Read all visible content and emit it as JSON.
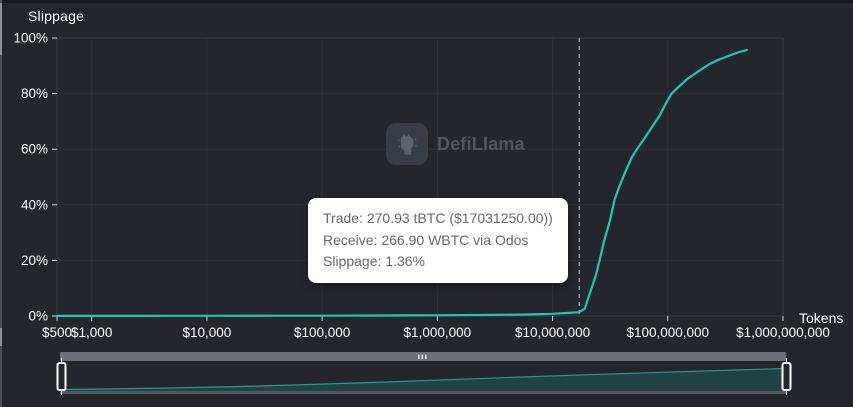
{
  "header": {
    "title": "Slippage"
  },
  "axis_labels": {
    "x_unit": "Tokens"
  },
  "watermark": {
    "label": "DefiLlama"
  },
  "tooltip": {
    "trade": "Trade: 270.93 tBTC ($17031250.00))",
    "receive": "Receive: 266.90 WBTC via Odos",
    "slippage": "Slippage: 1.36%"
  },
  "colors": {
    "accent": "#1dc8b6",
    "background": "#24262b",
    "grid": "#2f3237",
    "border": "#3a3d44",
    "tick": "#d9dadc",
    "tick_text": "#ffffff",
    "crosshair": "#d4d5d7",
    "scrollbar": "#6e7177",
    "scrollbar_grip": "#d9dadb",
    "brush_fill_opacity": "0.18",
    "brush_line": "#27a795",
    "brush_bottom": "#55585e",
    "handle_border": "#ffffff",
    "handle_fill": "#24262b",
    "tooltip_bg": "#ffffff",
    "tooltip_text": "#66696d"
  },
  "chart_data": {
    "type": "line",
    "title": "Slippage",
    "xlabel": "Tokens",
    "ylabel": "Slippage",
    "x_scale": "log",
    "x_range": [
      500,
      1000000000
    ],
    "ylim": [
      0,
      100
    ],
    "grid": true,
    "x_ticks": [
      "$500",
      "$1,000",
      "$10,000",
      "$100,000",
      "$1,000,000",
      "$10,000,000",
      "$100,000,000",
      "$1,000,000,000"
    ],
    "x_tick_values": [
      500,
      1000,
      10000,
      100000,
      1000000,
      10000000,
      100000000,
      1000000000
    ],
    "y_ticks": [
      "0%",
      "20%",
      "40%",
      "60%",
      "80%",
      "100%"
    ],
    "y_tick_values": [
      0,
      20,
      40,
      60,
      80,
      100
    ],
    "crosshair_x_usd": 17031250,
    "hover_point": {
      "trade_tokens": 270.93,
      "trade_token_symbol": "tBTC",
      "trade_usd": 17031250.0,
      "receive_amount": 266.9,
      "receive_token_symbol": "WBTC",
      "aggregator": "Odos",
      "slippage_pct": 1.36
    },
    "series": [
      {
        "name": "Slippage %",
        "color": "#1dc8b6",
        "points_usd_pct": [
          [
            500,
            0.05
          ],
          [
            1000,
            0.05
          ],
          [
            5000,
            0.07
          ],
          [
            10000,
            0.08
          ],
          [
            50000,
            0.1
          ],
          [
            100000,
            0.12
          ],
          [
            500000,
            0.2
          ],
          [
            1000000,
            0.25
          ],
          [
            3000000,
            0.4
          ],
          [
            6000000,
            0.55
          ],
          [
            10000000,
            0.8
          ],
          [
            14000000,
            1.1
          ],
          [
            17031250,
            1.36
          ],
          [
            19000000,
            2.6
          ],
          [
            21000000,
            8
          ],
          [
            23500000,
            14
          ],
          [
            25600000,
            20
          ],
          [
            28000000,
            27
          ],
          [
            31300000,
            34
          ],
          [
            34600000,
            42
          ],
          [
            38300000,
            47
          ],
          [
            43000000,
            52
          ],
          [
            48600000,
            57
          ],
          [
            54000000,
            60
          ],
          [
            63000000,
            64
          ],
          [
            73000000,
            68
          ],
          [
            85000000,
            72
          ],
          [
            95000000,
            76
          ],
          [
            108000000,
            80
          ],
          [
            125000000,
            82.5
          ],
          [
            145000000,
            85
          ],
          [
            170000000,
            87
          ],
          [
            200000000,
            89
          ],
          [
            235000000,
            90.8
          ],
          [
            270000000,
            92
          ],
          [
            310000000,
            93
          ],
          [
            360000000,
            94
          ],
          [
            420000000,
            95
          ],
          [
            486000000,
            95.7
          ]
        ]
      }
    ],
    "brush_profile": [
      [
        0,
        0.05
      ],
      [
        0.07,
        0.07
      ],
      [
        0.15,
        0.1
      ],
      [
        0.25,
        0.15
      ],
      [
        0.35,
        0.22
      ],
      [
        0.45,
        0.3
      ],
      [
        0.55,
        0.39
      ],
      [
        0.65,
        0.48
      ],
      [
        0.75,
        0.56
      ],
      [
        0.85,
        0.64
      ],
      [
        0.93,
        0.7
      ],
      [
        1,
        0.75
      ]
    ]
  }
}
